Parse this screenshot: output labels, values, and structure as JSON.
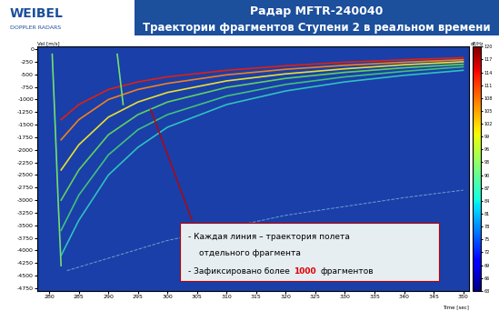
{
  "chart_data": {
    "type": "line",
    "logo": {
      "name": "WEIBEL",
      "tagline": "DOPPLER RADARS"
    },
    "title": "Радар MFTR-240040",
    "subtitle": "Траектории фрагментов Ступени 2 в реальном времени",
    "y_label": "Vel [m/s]",
    "x_label": "Time [sec]",
    "xlim": [
      278,
      351
    ],
    "xticks": [
      280,
      285,
      290,
      295,
      300,
      305,
      310,
      315,
      320,
      325,
      330,
      335,
      340,
      345,
      350
    ],
    "ylim": [
      -4800,
      50
    ],
    "yticks": [
      0,
      -250,
      -500,
      -750,
      -1000,
      -1250,
      -1500,
      -1750,
      -2000,
      -2250,
      -2500,
      -2750,
      -3000,
      -3250,
      -3500,
      -3750,
      -4000,
      -4250,
      -4500,
      -4750
    ],
    "grid": false,
    "series": [
      {
        "x": [
          282,
          285,
          290,
          295,
          300,
          310,
          320,
          330,
          340,
          350
        ],
        "values": [
          -1400,
          -1100,
          -800,
          -650,
          -550,
          -420,
          -330,
          -260,
          -210,
          -170
        ],
        "color": "#e02010",
        "line_style": "solid"
      },
      {
        "x": [
          282,
          285,
          290,
          295,
          300,
          310,
          320,
          330,
          340,
          350
        ],
        "values": [
          -1800,
          -1400,
          -1000,
          -800,
          -680,
          -510,
          -400,
          -320,
          -260,
          -210
        ],
        "color": "#f08020",
        "line_style": "solid"
      },
      {
        "x": [
          282,
          285,
          290,
          295,
          300,
          310,
          320,
          330,
          340,
          350
        ],
        "values": [
          -2400,
          -1900,
          -1350,
          -1050,
          -860,
          -630,
          -490,
          -390,
          -310,
          -250
        ],
        "color": "#e8e030",
        "line_style": "solid"
      },
      {
        "x": [
          282,
          285,
          290,
          295,
          300,
          310,
          320,
          330,
          340,
          350
        ],
        "values": [
          -3000,
          -2400,
          -1700,
          -1300,
          -1050,
          -760,
          -580,
          -460,
          -370,
          -300
        ],
        "color": "#60d060",
        "line_style": "solid"
      },
      {
        "x": [
          282,
          285,
          290,
          295,
          300,
          310,
          320,
          330,
          340,
          350
        ],
        "values": [
          -3600,
          -2900,
          -2100,
          -1600,
          -1300,
          -930,
          -700,
          -550,
          -440,
          -350
        ],
        "color": "#40c080",
        "line_style": "solid"
      },
      {
        "x": [
          282,
          285,
          290,
          295,
          300,
          310,
          320,
          330,
          340,
          350
        ],
        "values": [
          -4100,
          -3400,
          -2500,
          -1950,
          -1550,
          -1100,
          -830,
          -650,
          -520,
          -420
        ],
        "color": "#30c0c0",
        "line_style": "solid"
      },
      {
        "x": [
          280.5,
          281,
          281.5,
          282
        ],
        "values": [
          -100,
          -1500,
          -3000,
          -4300
        ],
        "color": "#70e070",
        "line_style": "solid"
      },
      {
        "x": [
          291.5,
          292,
          292.5
        ],
        "values": [
          -100,
          -600,
          -1100
        ],
        "color": "#70e070",
        "line_style": "solid"
      },
      {
        "x": [
          283,
          300,
          320,
          340,
          350
        ],
        "values": [
          -4400,
          -3800,
          -3300,
          -2950,
          -2800
        ],
        "color": "#6fa0d0",
        "line_style": "dashed"
      }
    ],
    "annotation": {
      "x": 297,
      "y": -1150,
      "color": "#c00000",
      "lines": [
        [
          {
            "text": "- Каждая линия – траектория полета",
            "color": "#000000"
          }
        ],
        [
          {
            "text": "отдельного фрагмента",
            "color": "#000000"
          }
        ],
        [
          {
            "text": "- Зафиксировано более",
            "color": "#000000"
          },
          {
            "text": "1000",
            "color": "#e00000"
          },
          {
            "text": "фрагментов",
            "color": "#000000"
          }
        ]
      ]
    },
    "colorbar": {
      "label": "dB/Hz",
      "range": [
        63,
        120
      ],
      "ticks": [
        63,
        66,
        69,
        72,
        75,
        78,
        81,
        84,
        87,
        90,
        93,
        96,
        99,
        102,
        105,
        108,
        111,
        114,
        117,
        120
      ]
    }
  }
}
